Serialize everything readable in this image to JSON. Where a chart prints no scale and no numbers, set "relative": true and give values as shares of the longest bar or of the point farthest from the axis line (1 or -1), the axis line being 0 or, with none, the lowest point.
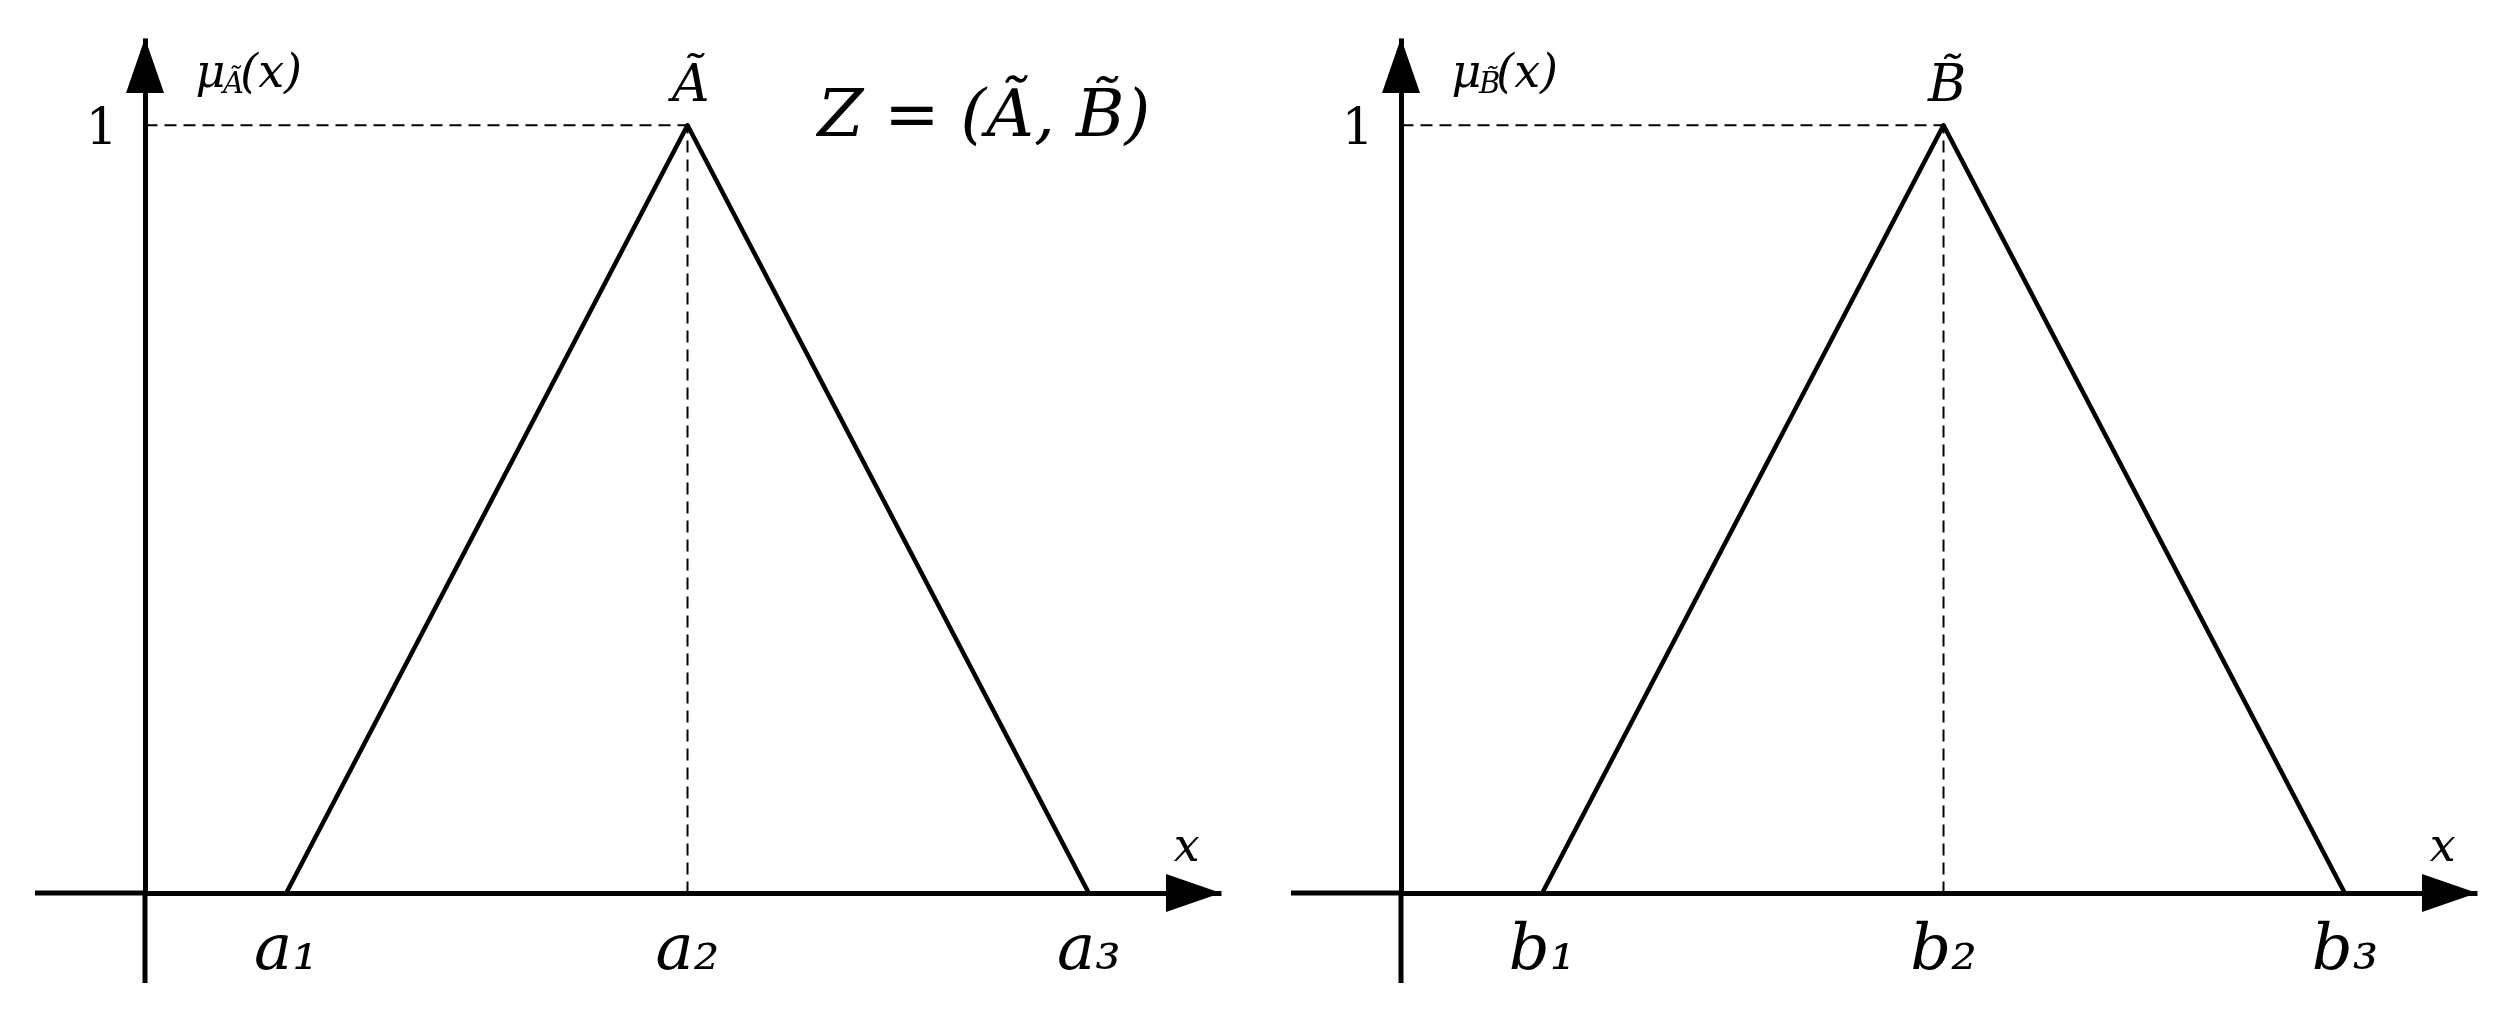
{
  "chart_data": [
    {
      "type": "line",
      "relative": true,
      "categories": [
        "a₁",
        "a₂",
        "a₃"
      ],
      "values": [
        0,
        1,
        0
      ],
      "color": "#000000",
      "line_style": "solid",
      "xlabel": "x",
      "ylabel": "μ$_{Ã}$(x)",
      "ref_lines": [
        {
          "axis": "y",
          "value": 1,
          "label": "1",
          "line_style": "dashed"
        },
        {
          "axis": "x",
          "value": "a₂",
          "line_style": "dashed"
        }
      ],
      "annotations": [
        {
          "text": "Ã",
          "x": "a₂",
          "y": 1
        },
        "Z = (Ã, B̃)"
      ]
    },
    {
      "type": "line",
      "relative": true,
      "categories": [
        "b₁",
        "b₂",
        "b₃"
      ],
      "values": [
        0,
        1,
        0
      ],
      "color": "#000000",
      "line_style": "solid",
      "xlabel": "x",
      "ylabel": "μ$_{B̃}$(x)",
      "ref_lines": [
        {
          "axis": "y",
          "value": 1,
          "label": "1",
          "line_style": "dashed"
        },
        {
          "axis": "x",
          "value": "b₂",
          "line_style": "dashed"
        }
      ],
      "annotations": [
        {
          "text": "B̃",
          "x": "b₂",
          "y": 1
        }
      ]
    }
  ]
}
